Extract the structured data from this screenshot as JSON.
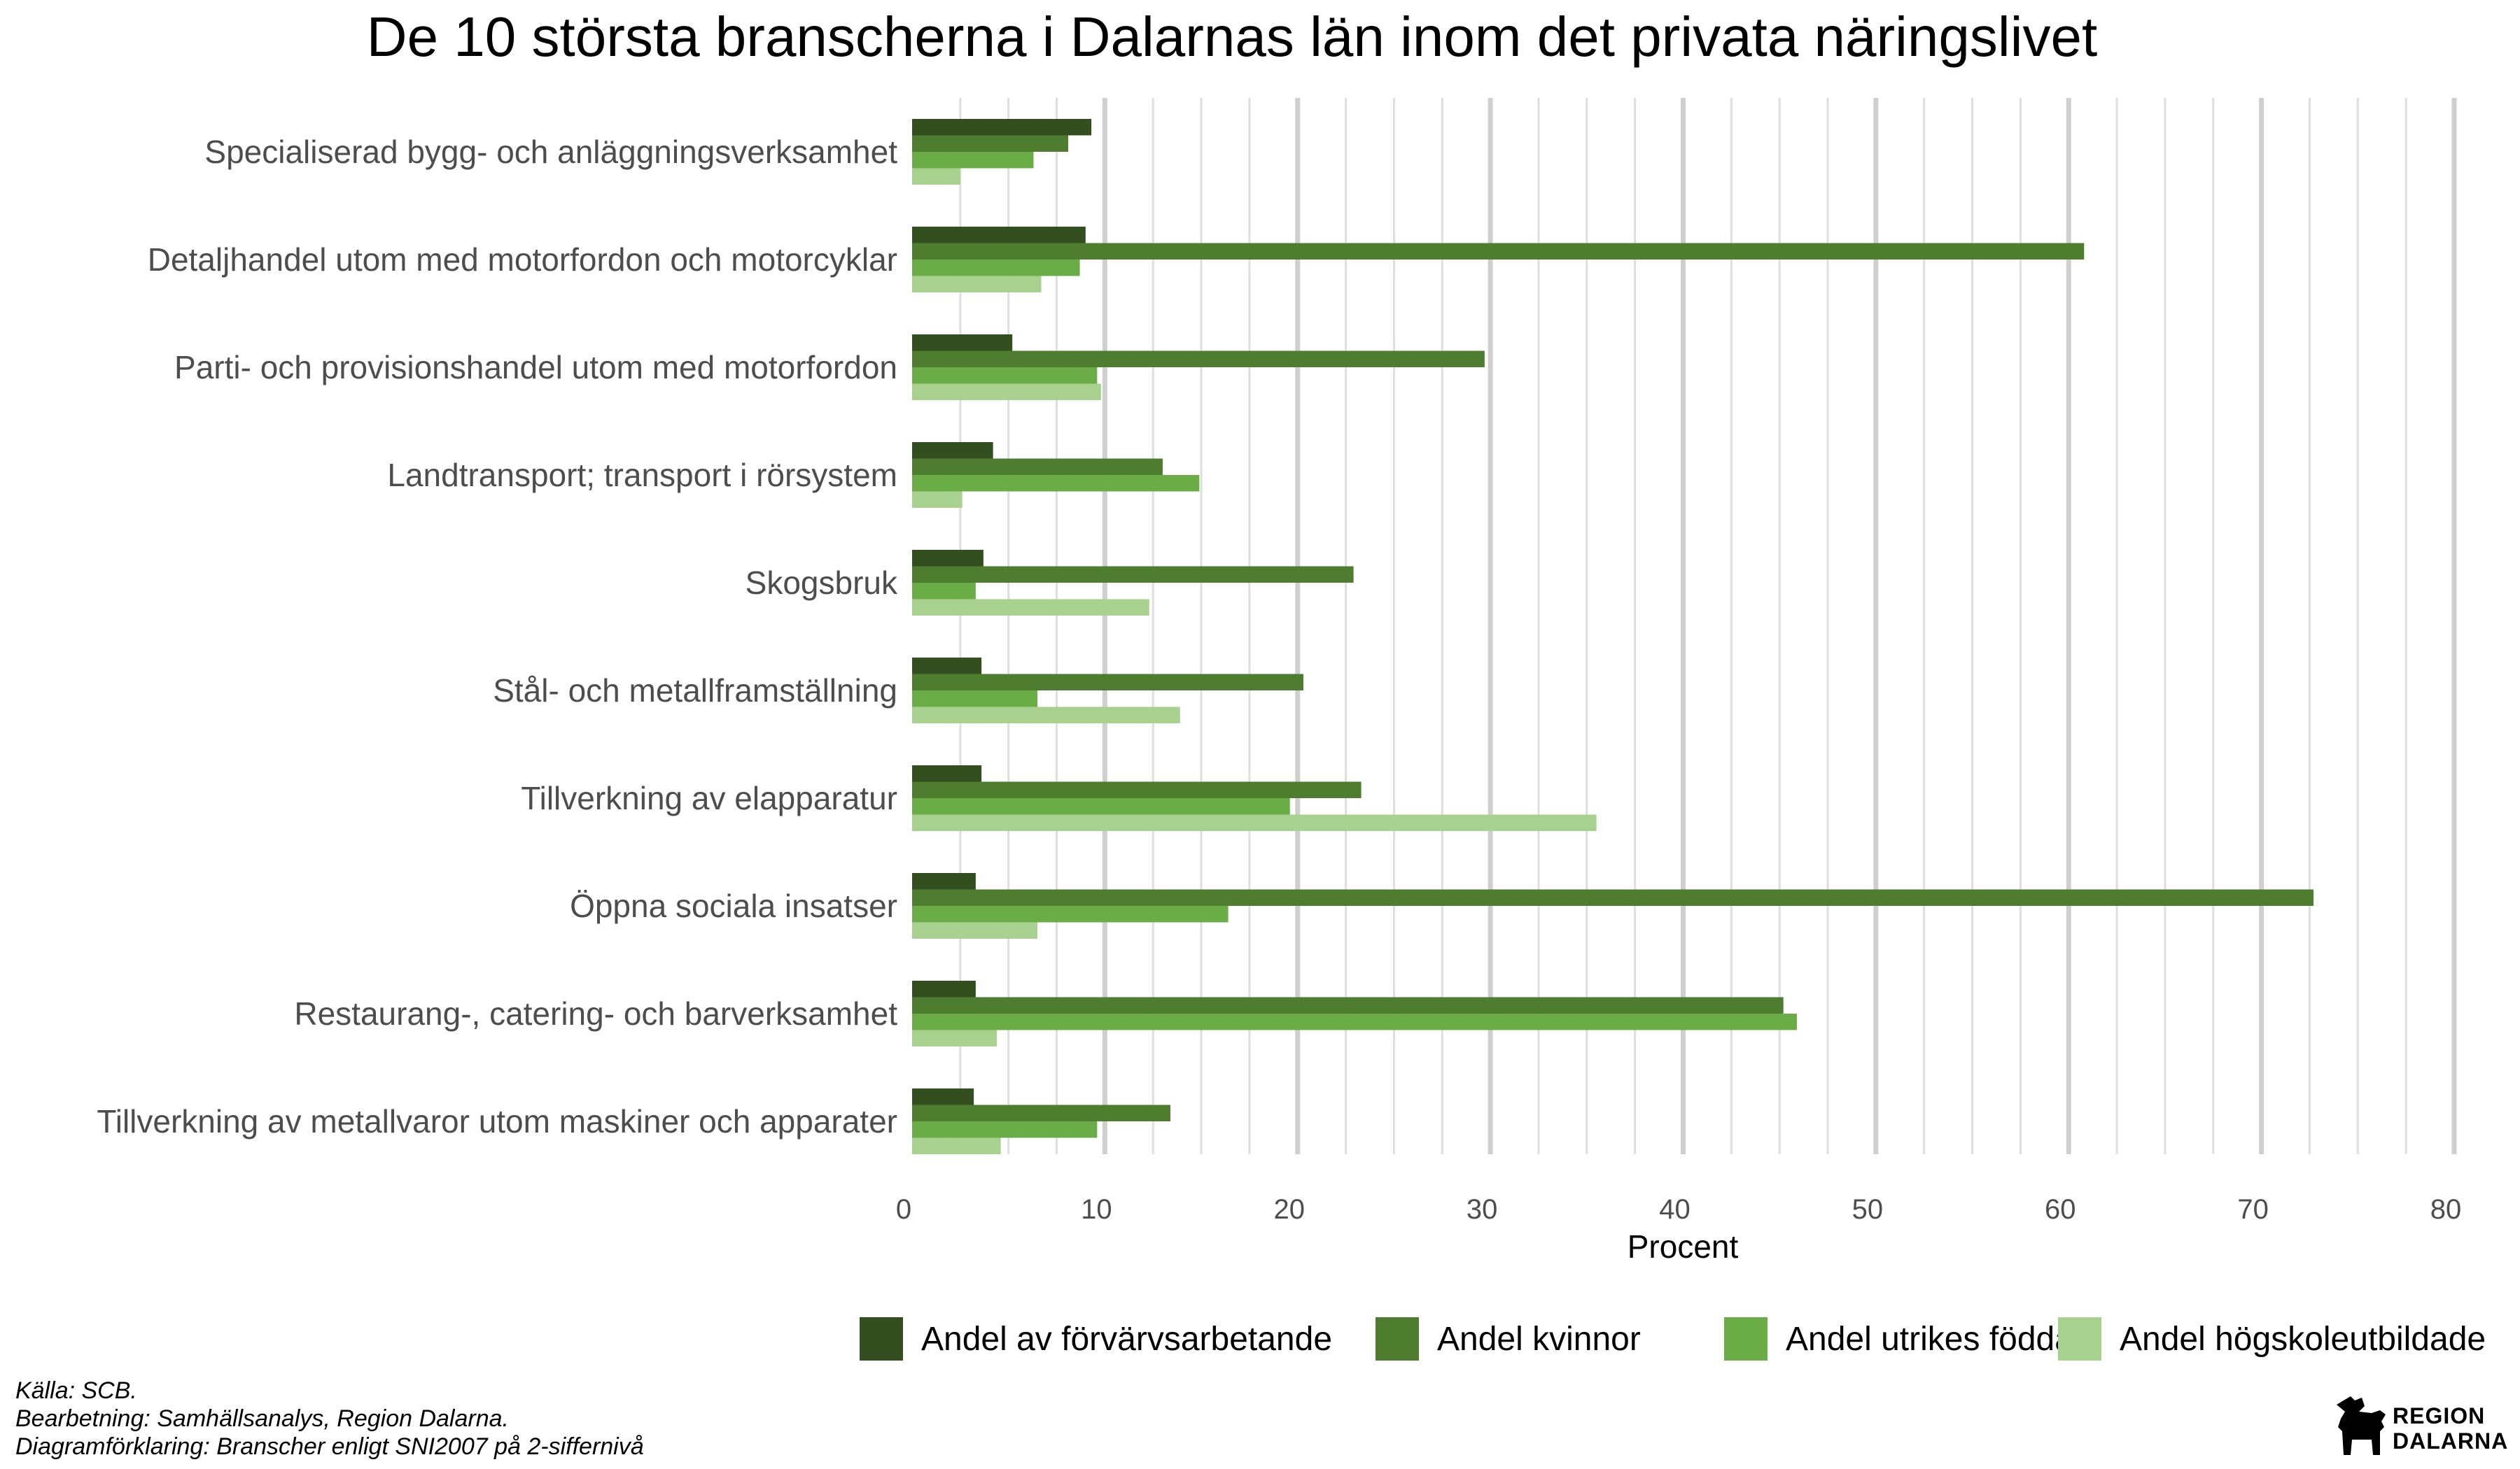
{
  "chart_data": {
    "type": "bar",
    "orientation": "horizontal",
    "title": "De 10 största branscherna i Dalarnas län inom det privata näringslivet",
    "xlabel": "Procent",
    "ylabel": "",
    "xlim": [
      0,
      80
    ],
    "xticks": [
      0,
      10,
      20,
      30,
      40,
      50,
      60,
      70,
      80
    ],
    "grid": "vertical",
    "legend_position": "bottom-right",
    "categories": [
      "Specialiserad bygg- och anläggningsverksamhet",
      "Detaljhandel utom med motorfordon och motorcyklar",
      "Parti- och provisionshandel utom med motorfordon",
      "Landtransport; transport i rörsystem",
      "Skogsbruk",
      "Stål- och metallframställning",
      "Tillverkning av elapparatur",
      "Öppna sociala insatser",
      "Restaurang-, catering- och barverksamhet",
      "Tillverkning av metallvaror utom maskiner och apparater"
    ],
    "series": [
      {
        "name": "Andel av förvärvsarbetande",
        "color": "#344f1f",
        "values": [
          9.3,
          9.0,
          5.2,
          4.2,
          3.7,
          3.6,
          3.6,
          3.3,
          3.3,
          3.2
        ]
      },
      {
        "name": "Andel kvinnor",
        "color": "#4e7d30",
        "values": [
          8.1,
          60.8,
          29.7,
          13.0,
          22.9,
          20.3,
          23.3,
          72.7,
          45.2,
          13.4
        ]
      },
      {
        "name": "Andel utrikes födda",
        "color": "#6aac46",
        "values": [
          6.3,
          8.7,
          9.6,
          14.9,
          3.3,
          6.5,
          19.6,
          16.4,
          45.9,
          9.6
        ]
      },
      {
        "name": "Andel högskoleutbildade",
        "color": "#a8d08f",
        "values": [
          2.5,
          6.7,
          9.8,
          2.6,
          12.3,
          13.9,
          35.5,
          6.5,
          4.4,
          4.6
        ]
      }
    ]
  },
  "notes": {
    "source": "Källa: SCB.",
    "processing": "Bearbetning: Samhällsanalys, Region Dalarna.",
    "explanation": "Diagramförklaring: Branscher enligt SNI2007 på 2-siffernivå"
  },
  "logo": {
    "icon": "dala-horse-icon",
    "line1": "REGION",
    "line2": "DALARNA"
  }
}
